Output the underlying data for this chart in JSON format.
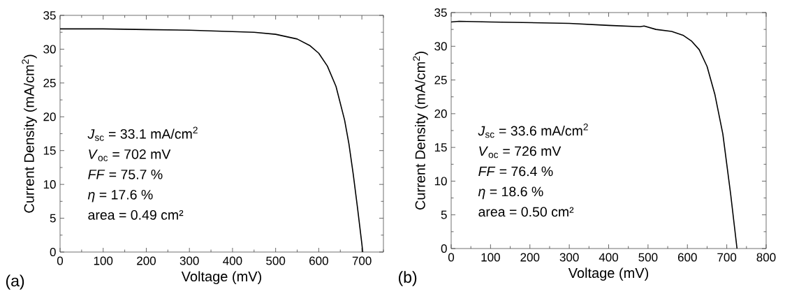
{
  "chart_data": [
    {
      "type": "line",
      "xlabel": "Voltage (mV)",
      "ylabel": "Current Density (mA/cm$^{2}$)",
      "xlim": [
        0,
        750
      ],
      "xticks": [
        0,
        {
          "value": 50,
          "label": null
        },
        100,
        {
          "value": 150,
          "label": null
        },
        200,
        {
          "value": 250,
          "label": null
        },
        300,
        {
          "value": 350,
          "label": null
        },
        400,
        {
          "value": 450,
          "label": null
        },
        500,
        {
          "value": 550,
          "label": null
        },
        600,
        {
          "value": 650,
          "label": null
        },
        700,
        {
          "value": 750,
          "label": null
        }
      ],
      "ylim": [
        0,
        35
      ],
      "yticks": [
        0,
        {
          "value": 2.5,
          "label": null
        },
        5,
        {
          "value": 7.5,
          "label": null
        },
        10,
        {
          "value": 12.5,
          "label": null
        },
        15,
        {
          "value": 17.5,
          "label": null
        },
        20,
        {
          "value": 22.5,
          "label": null
        },
        25,
        {
          "value": 27.5,
          "label": null
        },
        30,
        {
          "value": 32.5,
          "label": null
        },
        35
      ],
      "x": [
        0,
        100,
        200,
        300,
        400,
        450,
        500,
        550,
        580,
        600,
        620,
        640,
        660,
        670,
        680,
        690,
        700,
        702
      ],
      "series": [
        {
          "color": "#000000",
          "values": [
            33.0,
            33.0,
            32.9,
            32.8,
            32.6,
            32.5,
            32.2,
            31.5,
            30.5,
            29.4,
            27.5,
            24.5,
            19.5,
            16.0,
            11.5,
            6.5,
            1.2,
            0
          ]
        }
      ],
      "annotations": [
        "*J*$_{sc}$ = 33.1 mA/cm$^{2}$",
        "*V*$_{oc}$ = 702 mV",
        "*FF* = 75.7 %",
        "*η* = 17.6 %",
        "area = 0.49 cm²",
        "(a)"
      ]
    },
    {
      "type": "line",
      "xlabel": "Voltage (mV)",
      "ylabel": "Current Density (mA/cm$^{2}$)",
      "xlim": [
        0,
        800
      ],
      "xticks": [
        0,
        {
          "value": 50,
          "label": null
        },
        100,
        {
          "value": 150,
          "label": null
        },
        200,
        {
          "value": 250,
          "label": null
        },
        300,
        {
          "value": 350,
          "label": null
        },
        400,
        {
          "value": 450,
          "label": null
        },
        500,
        {
          "value": 550,
          "label": null
        },
        600,
        {
          "value": 650,
          "label": null
        },
        700,
        {
          "value": 750,
          "label": null
        },
        800
      ],
      "ylim": [
        0,
        35
      ],
      "yticks": [
        0,
        {
          "value": 2.5,
          "label": null
        },
        5,
        {
          "value": 7.5,
          "label": null
        },
        10,
        {
          "value": 12.5,
          "label": null
        },
        15,
        {
          "value": 17.5,
          "label": null
        },
        20,
        {
          "value": 22.5,
          "label": null
        },
        25,
        {
          "value": 27.5,
          "label": null
        },
        30,
        {
          "value": 32.5,
          "label": null
        },
        35
      ],
      "x": [
        0,
        20,
        100,
        200,
        300,
        400,
        480,
        490,
        520,
        560,
        590,
        610,
        630,
        650,
        670,
        690,
        700,
        710,
        720,
        726
      ],
      "series": [
        {
          "color": "#000000",
          "values": [
            33.6,
            33.7,
            33.6,
            33.5,
            33.4,
            33.1,
            32.9,
            33.0,
            32.5,
            32.2,
            31.6,
            30.8,
            29.5,
            27.0,
            22.8,
            17.0,
            12.5,
            8.0,
            3.0,
            0
          ]
        }
      ],
      "annotations": [
        "*J*$_{sc}$ = 33.6 mA/cm$^{2}$",
        "*V*$_{oc}$ = 726 mV",
        "*FF* = 76.4 %",
        "*η* = 18.6 %",
        "area = 0.50 cm²",
        "(b)"
      ]
    }
  ]
}
